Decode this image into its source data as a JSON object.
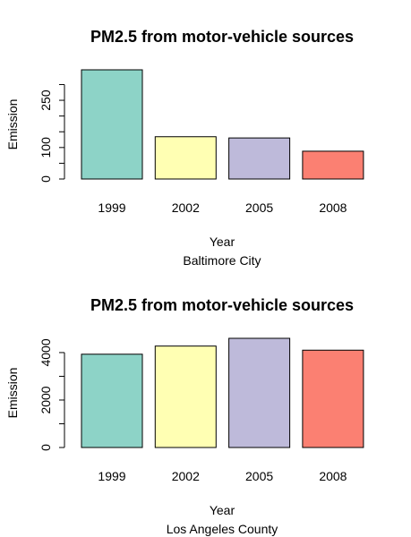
{
  "colors": [
    "#8dd3c7",
    "#ffffb3",
    "#bebada",
    "#fb8072"
  ],
  "chart_data": [
    {
      "type": "bar",
      "title": "PM2.5 from motor-vehicle sources",
      "xlabel": "Year",
      "subtitle": "Baltimore City",
      "ylabel": "Emission",
      "categories": [
        "1999",
        "2002",
        "2005",
        "2008"
      ],
      "values": [
        346.8,
        134.3,
        130.4,
        88.3
      ],
      "ylim": [
        0,
        346.8
      ],
      "yticks": [
        0,
        50,
        100,
        150,
        200,
        250,
        300
      ],
      "yticklabels": [
        "0",
        "",
        "100",
        "",
        "",
        "250",
        ""
      ]
    },
    {
      "type": "bar",
      "title": "PM2.5 from motor-vehicle sources",
      "xlabel": "Year",
      "subtitle": "Los Angeles County",
      "ylabel": "Emission",
      "categories": [
        "1999",
        "2002",
        "2005",
        "2008"
      ],
      "values": [
        3931,
        4274,
        4601,
        4101
      ],
      "ylim": [
        0,
        4601
      ],
      "yticks": [
        0,
        1000,
        2000,
        3000,
        4000
      ],
      "yticklabels": [
        "0",
        "",
        "2000",
        "",
        "4000"
      ]
    }
  ]
}
